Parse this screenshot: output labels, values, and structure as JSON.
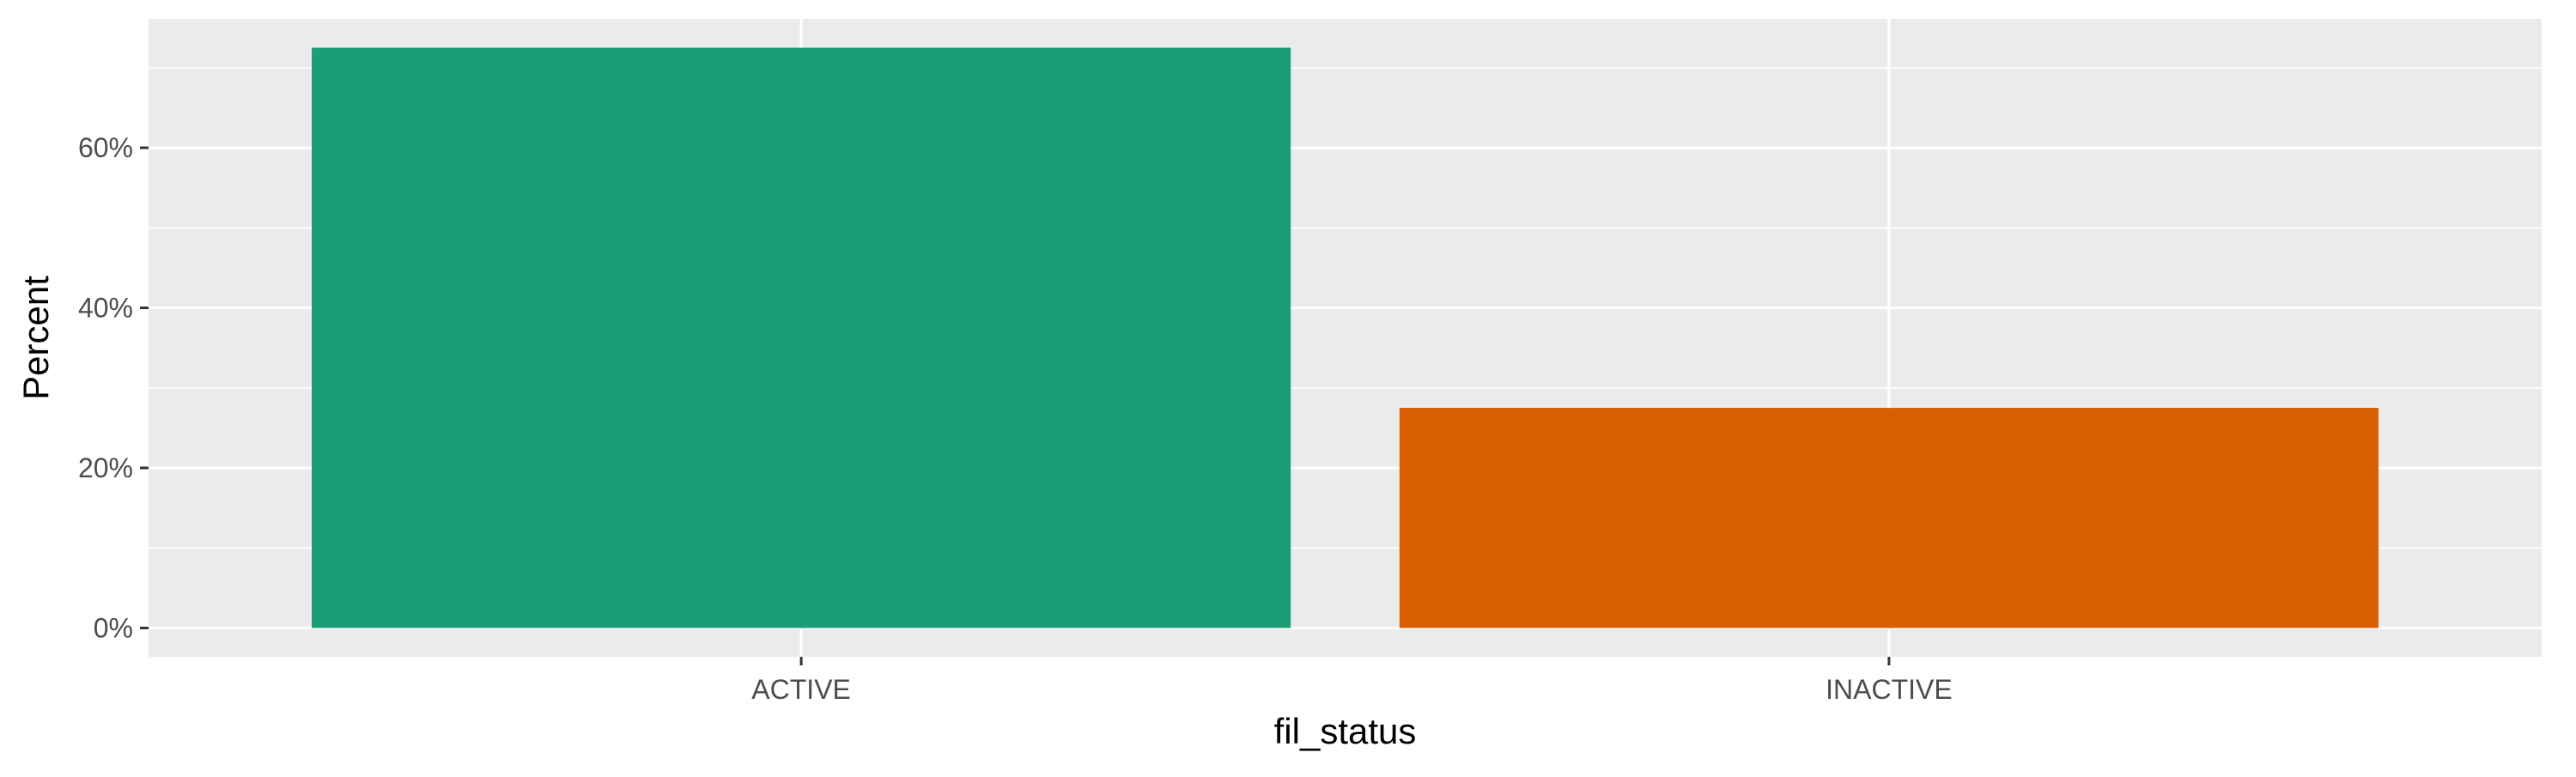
{
  "chart_data": {
    "type": "bar",
    "title": "",
    "xlabel": "fil_status",
    "ylabel": "Percent",
    "categories": [
      "ACTIVE",
      "INACTIVE"
    ],
    "values": [
      72.5,
      27.5
    ],
    "value_unit": "percent",
    "ylim": [
      -3.6,
      76.1
    ],
    "yticks": [
      0,
      20,
      40,
      60
    ],
    "ytick_labels": [
      "0%",
      "20%",
      "40%",
      "60%"
    ],
    "grid": true,
    "legend": "none",
    "colors": {
      "bars": [
        "#1b9e77",
        "#d95f02"
      ],
      "panel_background": "#ebebeb",
      "grid": "#ffffff",
      "tick_label": "#4d4d4d",
      "axis_title": "#000000"
    }
  }
}
